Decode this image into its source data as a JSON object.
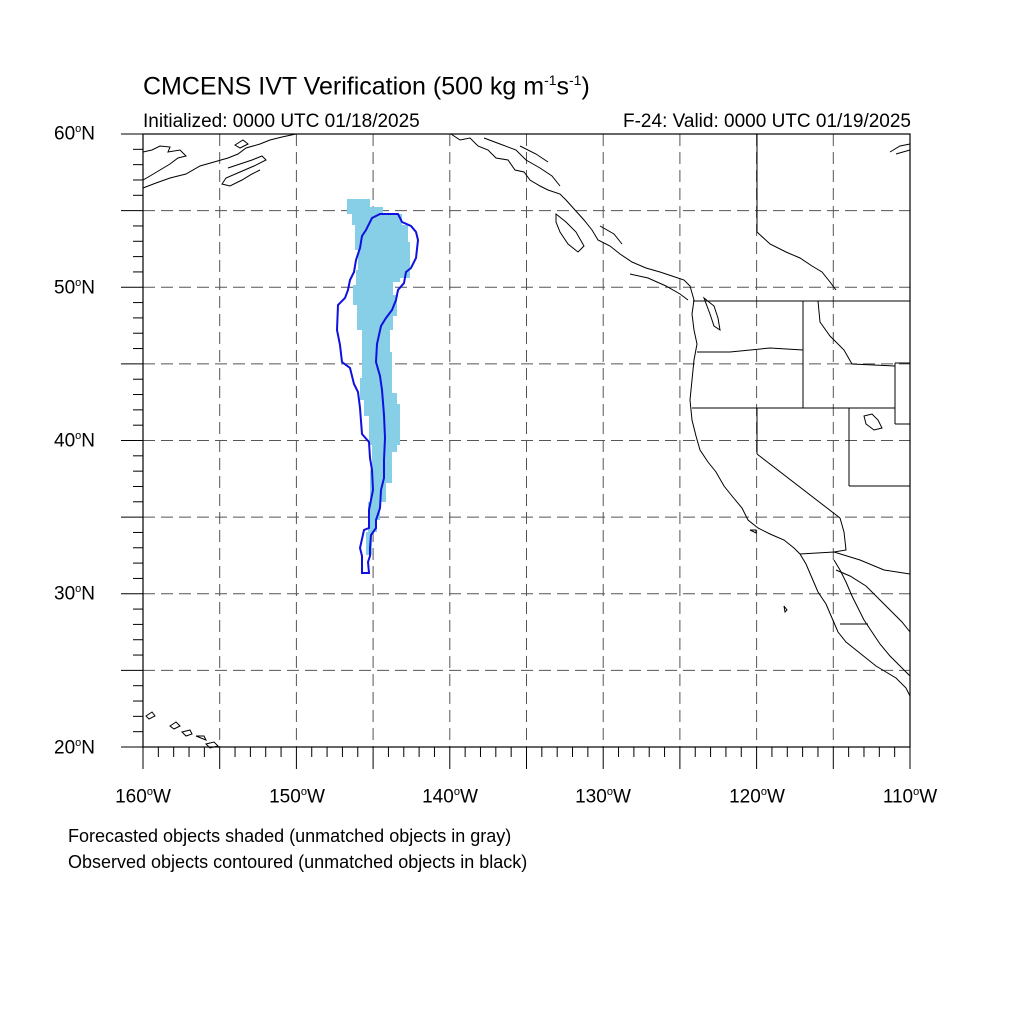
{
  "title": {
    "prefix": "CMCENS IVT Verification (500 kg m",
    "exp1": "-1",
    "mid": "s",
    "exp2": "-1",
    "suffix": ")"
  },
  "subtitle_left": "Initialized: 0000 UTC 01/18/2025",
  "subtitle_right": "F-24: Valid: 0000 UTC 01/19/2025",
  "lat_labels": [
    {
      "deg": "60",
      "hemi": "N"
    },
    {
      "deg": "50",
      "hemi": "N"
    },
    {
      "deg": "40",
      "hemi": "N"
    },
    {
      "deg": "30",
      "hemi": "N"
    },
    {
      "deg": "20",
      "hemi": "N"
    }
  ],
  "lon_labels": [
    {
      "deg": "160",
      "hemi": "W"
    },
    {
      "deg": "150",
      "hemi": "W"
    },
    {
      "deg": "140",
      "hemi": "W"
    },
    {
      "deg": "130",
      "hemi": "W"
    },
    {
      "deg": "120",
      "hemi": "W"
    },
    {
      "deg": "110",
      "hemi": "W"
    }
  ],
  "footer": {
    "line1": "Forecasted objects shaded (unmatched objects in gray)",
    "line2": "Observed objects contoured (unmatched objects in black)"
  },
  "map": {
    "extent": {
      "lon_min": -160,
      "lon_max": -110,
      "lat_min": 20,
      "lat_max": 60
    },
    "grid_interval_deg": 5,
    "colors": {
      "forecast_fill": "#87cfe6",
      "observed_contour": "#1010e0",
      "coast": "#000000"
    }
  }
}
